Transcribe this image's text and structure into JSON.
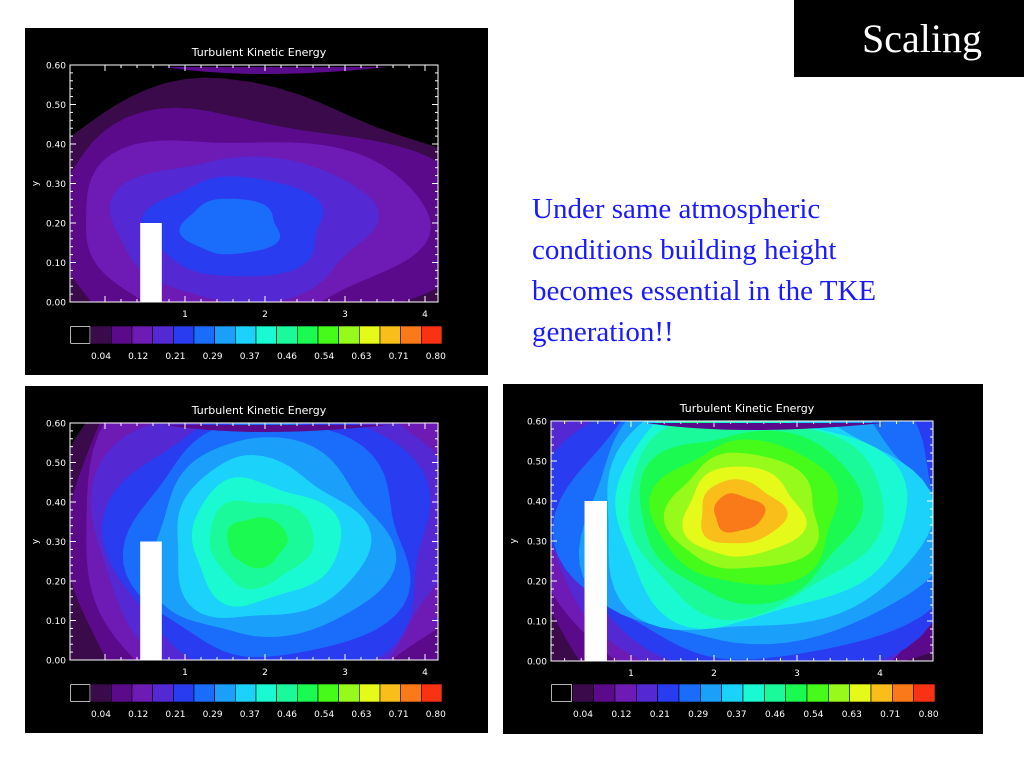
{
  "slide": {
    "title": "Scaling",
    "description_lines": [
      "Under same atmospheric",
      "conditions building height",
      "becomes essential in the TKE",
      "generation!!"
    ]
  },
  "colors": {
    "text_accent": "#1a1aff",
    "title_bg": "#000000",
    "plot_bg": "#000000",
    "building": "#ffffff"
  },
  "colorbar": {
    "colors": [
      "#000000",
      "#3a0a4a",
      "#5a0a8a",
      "#6e1ab4",
      "#5428d2",
      "#2a3cf0",
      "#1a6cfa",
      "#1aa0fa",
      "#1ad2fa",
      "#1afad2",
      "#1afa9a",
      "#1afa50",
      "#46fa1a",
      "#96fa1a",
      "#e6fa1a",
      "#fabe1a",
      "#fa7a1a",
      "#fa3214"
    ],
    "labels": [
      "0.04",
      "0.12",
      "0.21",
      "0.29",
      "0.37",
      "0.46",
      "0.54",
      "0.63",
      "0.71",
      "0.80"
    ]
  },
  "plots": [
    {
      "id": "h020",
      "title": "Turbulent Kinetic Energy",
      "ylabel": "y",
      "y_ticks": [
        "0.00",
        "0.10",
        "0.20",
        "0.30",
        "0.40",
        "0.50",
        "0.60"
      ],
      "x_ticks": [
        "1",
        "2",
        "3",
        "4"
      ],
      "building_height": 0.2,
      "ylim": [
        0,
        0.6
      ],
      "peak_level_index": 6,
      "peak_x": 1.5,
      "peak_y": 0.19
    },
    {
      "id": "h030",
      "title": "Turbulent Kinetic Energy",
      "ylabel": "y",
      "y_ticks": [
        "0.00",
        "0.10",
        "0.20",
        "0.30",
        "0.40",
        "0.50",
        "0.60"
      ],
      "x_ticks": [
        "1",
        "2",
        "3",
        "4"
      ],
      "building_height": 0.3,
      "ylim": [
        0,
        0.6
      ],
      "peak_level_index": 11,
      "peak_x": 1.85,
      "peak_y": 0.3
    },
    {
      "id": "h040",
      "title": "Turbulent Kinetic Energy",
      "ylabel": "y",
      "y_ticks": [
        "0.00",
        "0.10",
        "0.20",
        "0.30",
        "0.40",
        "0.50",
        "0.60"
      ],
      "x_ticks": [
        "1",
        "2",
        "3",
        "4"
      ],
      "building_height": 0.4,
      "ylim": [
        0,
        0.6
      ],
      "peak_level_index": 16,
      "peak_x": 2.25,
      "peak_y": 0.37
    }
  ]
}
